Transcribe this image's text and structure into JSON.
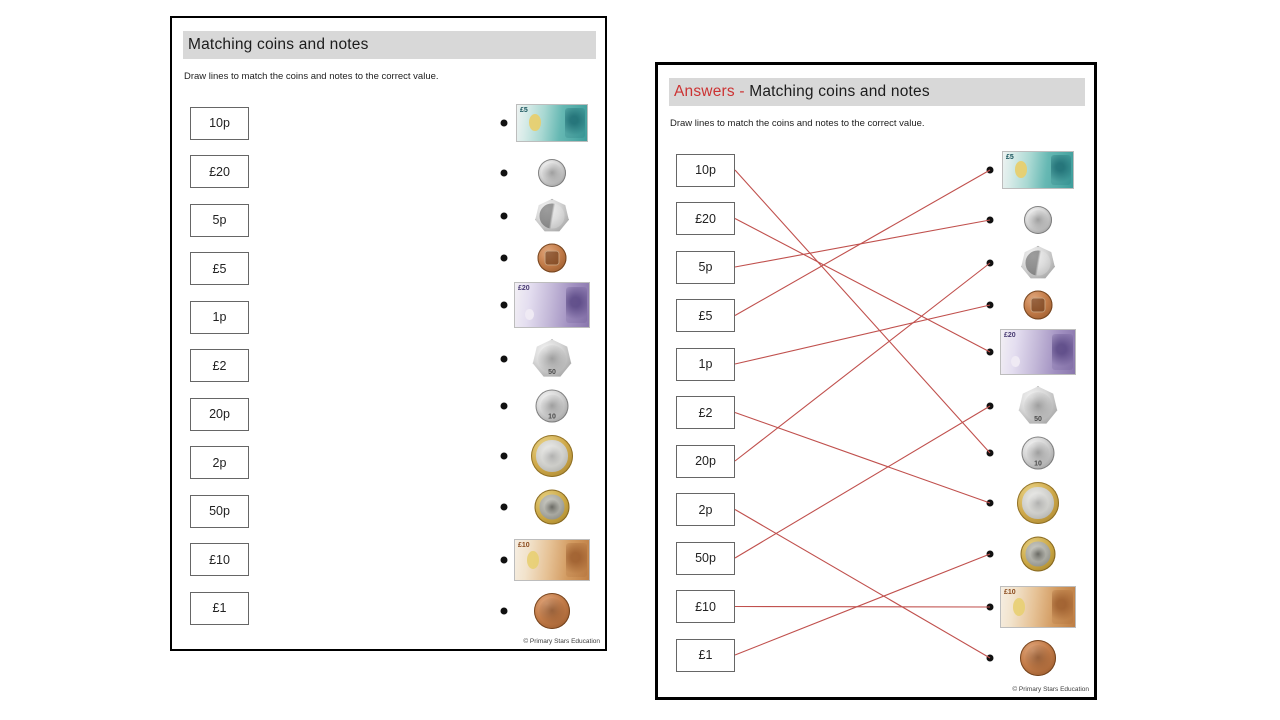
{
  "colors": {
    "title_bar_bg": "#d8d8d8",
    "answers_red": "#cc3333",
    "line_red": "#c0504d",
    "dot_black": "#111111"
  },
  "footer_text": "© Primary Stars Education",
  "money_text": {
    "note-5": "£5",
    "note-10": "£10",
    "note-20": "£20",
    "coin-10p": "10",
    "coin-50p": "50"
  },
  "pages": [
    {
      "name": "worksheet",
      "title_prefix": "",
      "title": "Matching coins and notes",
      "instructions": "Draw lines to match the coins and notes to the correct value.",
      "value_labels": [
        "10p",
        "£20",
        "5p",
        "£5",
        "1p",
        "£2",
        "20p",
        "2p",
        "50p",
        "£10",
        "£1"
      ],
      "items": [
        "note-5",
        "coin-5p",
        "coin-20p",
        "coin-1p",
        "note-20",
        "coin-50p",
        "coin-10p",
        "coin-2",
        "coin-1",
        "note-10",
        "coin-2p"
      ],
      "connections": []
    },
    {
      "name": "answers",
      "title_prefix": "Answers - ",
      "title": "Matching coins and notes",
      "instructions": "Draw lines to match the coins and notes to the correct value.",
      "value_labels": [
        "10p",
        "£20",
        "5p",
        "£5",
        "1p",
        "£2",
        "20p",
        "2p",
        "50p",
        "£10",
        "£1"
      ],
      "items": [
        "note-5",
        "coin-5p",
        "coin-20p",
        "coin-1p",
        "note-20",
        "coin-50p",
        "coin-10p",
        "coin-2",
        "coin-1",
        "note-10",
        "coin-2p"
      ],
      "connections": [
        [
          0,
          6
        ],
        [
          1,
          4
        ],
        [
          2,
          1
        ],
        [
          3,
          0
        ],
        [
          4,
          3
        ],
        [
          5,
          7
        ],
        [
          6,
          2
        ],
        [
          7,
          10
        ],
        [
          8,
          5
        ],
        [
          9,
          9
        ],
        [
          10,
          8
        ]
      ]
    }
  ]
}
